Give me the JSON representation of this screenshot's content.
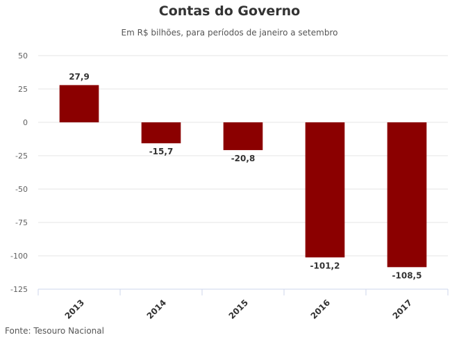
{
  "chart_data": {
    "type": "bar",
    "title": "Contas do Governo",
    "subtitle": "Em R$ bilhões, para períodos de janeiro a setembro",
    "source": "Fonte: Tesouro Nacional",
    "xlabel": "",
    "ylabel": "",
    "categories": [
      "2013",
      "2014",
      "2015",
      "2016",
      "2017"
    ],
    "values": [
      27.9,
      -15.7,
      -20.8,
      -101.2,
      -108.5
    ],
    "data_labels": [
      "27,9",
      "-15,7",
      "-20,8",
      "-101,2",
      "-108,5"
    ],
    "ylim": [
      -125,
      50
    ],
    "yticks": [
      50,
      25,
      0,
      -25,
      -50,
      -75,
      -100,
      -125
    ],
    "ytick_labels": [
      "50",
      "25",
      "0",
      "-25",
      "-50",
      "-75",
      "-100",
      "-125"
    ],
    "grid": true,
    "legend": "none",
    "bar_color": "#8b0000"
  }
}
